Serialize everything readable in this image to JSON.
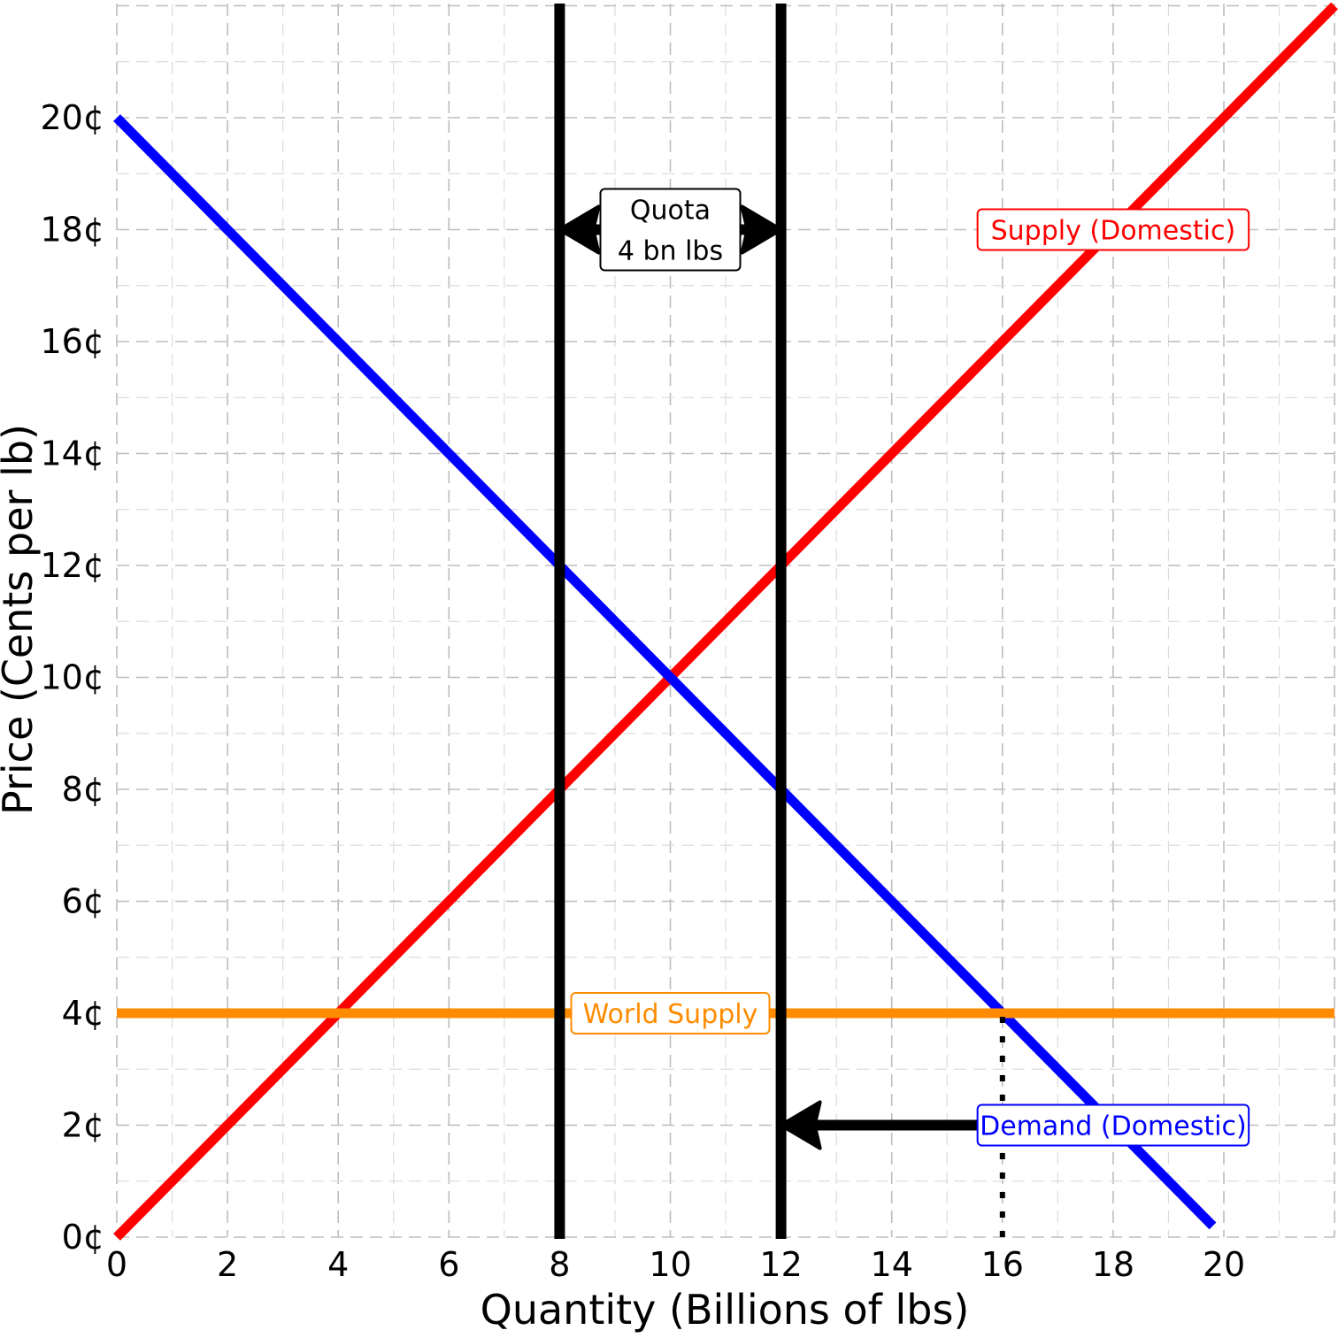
{
  "chart_data": {
    "type": "line",
    "xlabel": "Quantity (Billions of lbs)",
    "ylabel": "Price (Cents per lb)",
    "xlim": [
      0,
      22
    ],
    "ylim": [
      0,
      22
    ],
    "x_ticks": [
      {
        "value": 0,
        "label": "0"
      },
      {
        "value": 2,
        "label": "2"
      },
      {
        "value": 4,
        "label": "4"
      },
      {
        "value": 6,
        "label": "6"
      },
      {
        "value": 8,
        "label": "8"
      },
      {
        "value": 10,
        "label": "10"
      },
      {
        "value": 12,
        "label": "12"
      },
      {
        "value": 14,
        "label": "14"
      },
      {
        "value": 16,
        "label": "16"
      },
      {
        "value": 18,
        "label": "18"
      },
      {
        "value": 20,
        "label": "20"
      }
    ],
    "y_ticks": [
      {
        "value": 0,
        "label": "0¢"
      },
      {
        "value": 2,
        "label": "2¢"
      },
      {
        "value": 4,
        "label": "4¢"
      },
      {
        "value": 6,
        "label": "6¢"
      },
      {
        "value": 8,
        "label": "8¢"
      },
      {
        "value": 10,
        "label": "10¢"
      },
      {
        "value": 12,
        "label": "12¢"
      },
      {
        "value": 14,
        "label": "14¢"
      },
      {
        "value": 16,
        "label": "16¢"
      },
      {
        "value": 18,
        "label": "18¢"
      },
      {
        "value": 20,
        "label": "20¢"
      }
    ],
    "grid": true,
    "series": [
      {
        "name": "Supply (Domestic)",
        "color": "#ff0000",
        "x": [
          0,
          22
        ],
        "y": [
          0,
          22
        ]
      },
      {
        "name": "Demand (Domestic)",
        "color": "#0000ff",
        "x": [
          0,
          19.8
        ],
        "y": [
          20,
          0.2
        ]
      },
      {
        "name": "World Supply",
        "color": "#ff8c00",
        "x": [
          0,
          22
        ],
        "y": [
          4,
          4
        ]
      }
    ],
    "vertical_lines": [
      {
        "x": 8,
        "color": "#000000"
      },
      {
        "x": 12,
        "color": "#000000"
      }
    ],
    "dotted_segments": [
      {
        "x": [
          16,
          16
        ],
        "y": [
          0,
          4
        ],
        "color": "#000000"
      }
    ],
    "arrows": [
      {
        "type": "double",
        "x": [
          8,
          12
        ],
        "y": [
          18,
          18
        ],
        "color": "#000000"
      },
      {
        "type": "single",
        "from": [
          16,
          2
        ],
        "to": [
          12,
          2
        ],
        "color": "#000000"
      }
    ],
    "annotations": [
      {
        "lines": [
          "Quota",
          "4 bn lbs"
        ],
        "x": 10,
        "y": 18,
        "color": "#000000"
      },
      {
        "lines": [
          "Supply (Domestic)"
        ],
        "x": 18,
        "y": 18,
        "color": "#ff0000"
      },
      {
        "lines": [
          "World Supply"
        ],
        "x": 10,
        "y": 4,
        "color": "#ff8c00"
      },
      {
        "lines": [
          "Demand (Domestic)"
        ],
        "x": 18,
        "y": 2,
        "color": "#0000ff"
      }
    ]
  }
}
